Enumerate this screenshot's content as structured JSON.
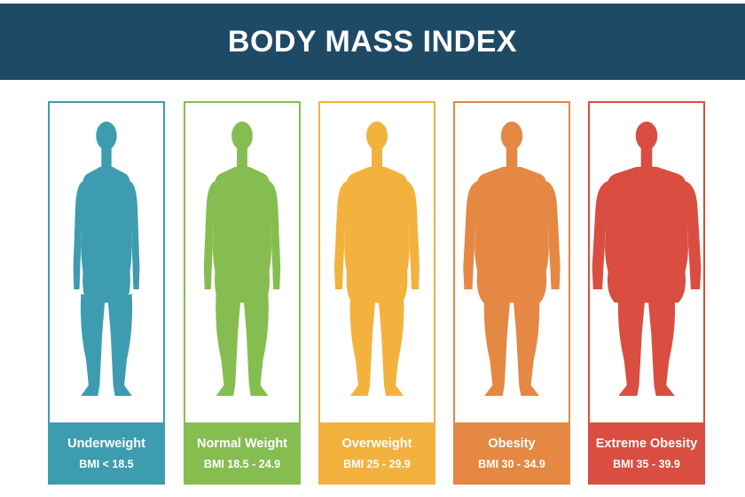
{
  "title": "BODY MASS INDEX",
  "categories": [
    {
      "name": "Underweight",
      "range": "BMI < 18.5",
      "color": "#3d9cb0",
      "icon": "underweight-body-icon"
    },
    {
      "name": "Normal Weight",
      "range": "BMI 18.5 - 24.9",
      "color": "#86bd50",
      "icon": "normal-weight-body-icon"
    },
    {
      "name": "Overweight",
      "range": "BMI 25 - 29.9",
      "color": "#f3b23e",
      "icon": "overweight-body-icon"
    },
    {
      "name": "Obesity",
      "range": "BMI 30 - 34.9",
      "color": "#e48843",
      "icon": "obesity-body-icon"
    },
    {
      "name": "Extreme Obesity",
      "range": "BMI 35 - 39.9",
      "color": "#d94e40",
      "icon": "extreme-obesity-body-icon"
    }
  ],
  "colors": {
    "title_bar": "#1e4a66",
    "title_text": "#ffffff"
  }
}
